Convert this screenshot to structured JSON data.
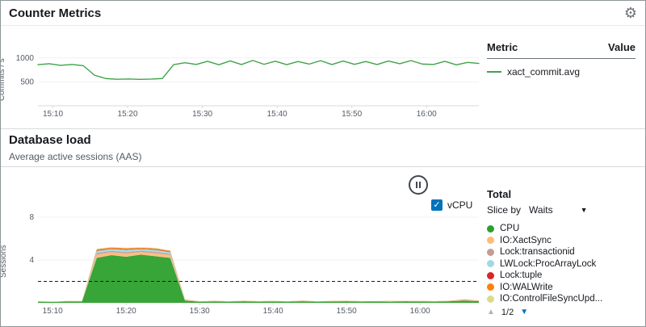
{
  "ui": {
    "counter": {
      "title": "Counter Metrics",
      "legend": {
        "metric_header": "Metric",
        "value_header": "Value"
      }
    },
    "db": {
      "title": "Database load",
      "subtitle": "Average active sessions (AAS)",
      "vcpu_label": "vCPU",
      "vcpu_checked": true,
      "total_label": "Total",
      "slice_by_label": "Slice by",
      "slice_by_value": "Waits",
      "pagination": "1/2"
    },
    "icons": {
      "settings_gear": "⚙",
      "dropdown_caret": "▼",
      "page_up": "▲",
      "page_down": "▼"
    },
    "colors": {
      "accent_blue": "#0073bb",
      "axis_text": "#545b64"
    }
  },
  "chart_data": [
    {
      "type": "line",
      "title": "Counter Metrics",
      "ylabel": "Commits / s",
      "xlim": [
        0,
        59
      ],
      "ylim": [
        0,
        1250
      ],
      "xticks": [
        {
          "v": 2,
          "label": "15:10"
        },
        {
          "v": 12,
          "label": "15:20"
        },
        {
          "v": 22,
          "label": "15:30"
        },
        {
          "v": 32,
          "label": "15:40"
        },
        {
          "v": 42,
          "label": "15:50"
        },
        {
          "v": 52,
          "label": "16:00"
        }
      ],
      "yticks": [
        {
          "v": 500,
          "label": "500"
        },
        {
          "v": 1000,
          "label": "1000"
        }
      ],
      "series": [
        {
          "name": "xact_commit.avg",
          "color": "#41a348",
          "values": [
            860,
            880,
            845,
            865,
            840,
            640,
            570,
            555,
            560,
            552,
            558,
            570,
            860,
            900,
            865,
            930,
            858,
            938,
            862,
            948,
            868,
            932,
            860,
            926,
            872,
            944,
            862,
            936,
            866,
            926,
            862,
            936,
            880,
            946,
            872,
            864,
            930,
            856,
            906,
            886
          ]
        }
      ]
    },
    {
      "type": "stacked-area",
      "title": "Database load",
      "ylabel": "Sessions",
      "xlim": [
        0,
        60
      ],
      "ylim": [
        0,
        8
      ],
      "hline": {
        "v": 2
      },
      "xticks": [
        {
          "v": 2,
          "label": "15:10"
        },
        {
          "v": 12,
          "label": "15:20"
        },
        {
          "v": 22,
          "label": "15:30"
        },
        {
          "v": 32,
          "label": "15:40"
        },
        {
          "v": 42,
          "label": "15:50"
        },
        {
          "v": 52,
          "label": "16:00"
        }
      ],
      "yticks": [
        {
          "v": 4,
          "label": "4"
        },
        {
          "v": 8,
          "label": "8"
        }
      ],
      "series": [
        {
          "name": "CPU",
          "color": "#2ca02c",
          "values": [
            0.1,
            0.08,
            0.12,
            0.12,
            4.2,
            4.45,
            4.3,
            4.5,
            4.35,
            4.2,
            0.2,
            0.1,
            0.12,
            0.1,
            0.14,
            0.1,
            0.12,
            0.1,
            0.14,
            0.1,
            0.12,
            0.14,
            0.1,
            0.12,
            0.1,
            0.14,
            0.12,
            0.1,
            0.14,
            0.2,
            0.15
          ]
        },
        {
          "name": "IO:XactSync",
          "color": "#ffbb78",
          "values": [
            0.02,
            0.02,
            0.02,
            0.02,
            0.3,
            0.28,
            0.3,
            0.25,
            0.28,
            0.26,
            0.04,
            0.02,
            0.03,
            0.02,
            0.02,
            0.03,
            0.02,
            0.02,
            0.03,
            0.02,
            0.02,
            0.03,
            0.02,
            0.02,
            0.03,
            0.02,
            0.02,
            0.03,
            0.02,
            0.04,
            0.03
          ]
        },
        {
          "name": "Lock:transactionid",
          "color": "#c49c94",
          "values": [
            0,
            0,
            0,
            0,
            0.15,
            0.12,
            0.14,
            0.12,
            0.13,
            0.12,
            0.02,
            0,
            0.01,
            0,
            0,
            0.01,
            0,
            0,
            0.01,
            0,
            0,
            0.01,
            0,
            0,
            0.01,
            0,
            0,
            0.01,
            0,
            0.02,
            0.01
          ]
        },
        {
          "name": "LWLock:ProcArrayLock",
          "color": "#9edae5",
          "values": [
            0,
            0,
            0,
            0,
            0.2,
            0.18,
            0.2,
            0.16,
            0.18,
            0.16,
            0.02,
            0,
            0.01,
            0,
            0.01,
            0,
            0.01,
            0,
            0.01,
            0,
            0.01,
            0,
            0.01,
            0,
            0.01,
            0,
            0.01,
            0,
            0.01,
            0.02,
            0.01
          ]
        },
        {
          "name": "Lock:tuple",
          "color": "#d62728",
          "values": [
            0,
            0,
            0,
            0,
            0.05,
            0.04,
            0.05,
            0.04,
            0.05,
            0.04,
            0.01,
            0,
            0,
            0,
            0,
            0,
            0,
            0,
            0,
            0,
            0,
            0,
            0,
            0,
            0,
            0,
            0,
            0,
            0,
            0.01,
            0
          ]
        },
        {
          "name": "IO:WALWrite",
          "color": "#ff7f0e",
          "values": [
            0.02,
            0.01,
            0.02,
            0.02,
            0.1,
            0.09,
            0.1,
            0.08,
            0.09,
            0.08,
            0.02,
            0.01,
            0.02,
            0.01,
            0.02,
            0.01,
            0.02,
            0.01,
            0.02,
            0.01,
            0.02,
            0.01,
            0.02,
            0.01,
            0.02,
            0.01,
            0.02,
            0.01,
            0.02,
            0.03,
            0.02
          ]
        },
        {
          "name": "IO:ControlFileSyncUpd...",
          "color": "#dbdb8d",
          "values": [
            0.01,
            0.01,
            0.01,
            0.01,
            0.05,
            0.05,
            0.05,
            0.04,
            0.05,
            0.04,
            0.01,
            0.01,
            0.01,
            0.01,
            0.01,
            0.01,
            0.01,
            0.01,
            0.01,
            0.01,
            0.01,
            0.01,
            0.01,
            0.01,
            0.01,
            0.01,
            0.01,
            0.01,
            0.01,
            0.02,
            0.01
          ]
        }
      ]
    }
  ]
}
